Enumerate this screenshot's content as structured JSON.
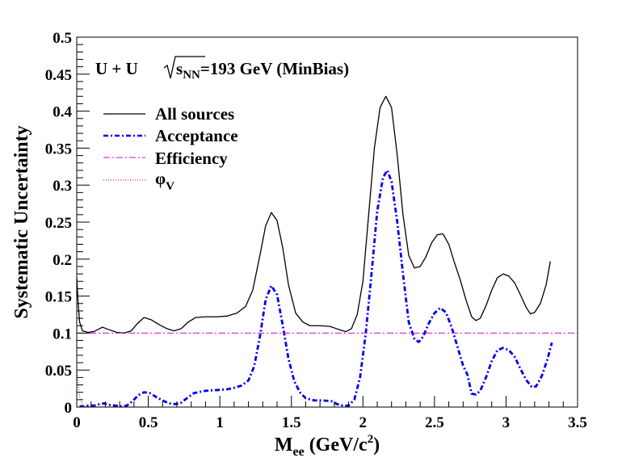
{
  "chart_data": {
    "type": "line",
    "title": "",
    "annotation": {
      "system": "U + U",
      "energy_symbol": "s",
      "energy_subscript": "NN",
      "energy_value": "=193 GeV (MinBias)"
    },
    "xlabel": {
      "main": "M",
      "sub": "ee",
      "unit_pre": " (GeV/c",
      "unit_sup": "2",
      "unit_post": ")"
    },
    "ylabel": "Systematic Uncertainty",
    "xlim": [
      0,
      3.5
    ],
    "ylim": [
      0,
      0.5
    ],
    "x_ticks": [
      {
        "value": 0,
        "label": "0"
      },
      {
        "value": 0.5,
        "label": "0.5"
      },
      {
        "value": 1,
        "label": "1"
      },
      {
        "value": 1.5,
        "label": "1.5"
      },
      {
        "value": 2,
        "label": "2"
      },
      {
        "value": 2.5,
        "label": "2.5"
      },
      {
        "value": 3,
        "label": "3"
      },
      {
        "value": 3.5,
        "label": "3.5"
      }
    ],
    "y_ticks": [
      {
        "value": 0,
        "label": "0"
      },
      {
        "value": 0.05,
        "label": "0.05"
      },
      {
        "value": 0.1,
        "label": "0.1"
      },
      {
        "value": 0.15,
        "label": "0.15"
      },
      {
        "value": 0.2,
        "label": "0.2"
      },
      {
        "value": 0.25,
        "label": "0.25"
      },
      {
        "value": 0.3,
        "label": "0.3"
      },
      {
        "value": 0.35,
        "label": "0.35"
      },
      {
        "value": 0.4,
        "label": "0.4"
      },
      {
        "value": 0.45,
        "label": "0.45"
      },
      {
        "value": 0.5,
        "label": "0.5"
      }
    ],
    "grid": false,
    "legend_position": "top-left",
    "series": [
      {
        "name": "All sources",
        "color": "#000000",
        "style": "solid",
        "points": [
          [
            0.0,
            0.175
          ],
          [
            0.01,
            0.14
          ],
          [
            0.02,
            0.115
          ],
          [
            0.04,
            0.103
          ],
          [
            0.08,
            0.101
          ],
          [
            0.12,
            0.102
          ],
          [
            0.15,
            0.105
          ],
          [
            0.18,
            0.108
          ],
          [
            0.22,
            0.105
          ],
          [
            0.28,
            0.101
          ],
          [
            0.33,
            0.1
          ],
          [
            0.38,
            0.103
          ],
          [
            0.42,
            0.112
          ],
          [
            0.47,
            0.121
          ],
          [
            0.52,
            0.118
          ],
          [
            0.58,
            0.111
          ],
          [
            0.63,
            0.106
          ],
          [
            0.68,
            0.103
          ],
          [
            0.73,
            0.106
          ],
          [
            0.78,
            0.115
          ],
          [
            0.83,
            0.121
          ],
          [
            0.9,
            0.122
          ],
          [
            0.98,
            0.122
          ],
          [
            1.05,
            0.123
          ],
          [
            1.12,
            0.127
          ],
          [
            1.18,
            0.136
          ],
          [
            1.23,
            0.158
          ],
          [
            1.28,
            0.205
          ],
          [
            1.32,
            0.245
          ],
          [
            1.36,
            0.263
          ],
          [
            1.4,
            0.252
          ],
          [
            1.44,
            0.215
          ],
          [
            1.48,
            0.165
          ],
          [
            1.53,
            0.127
          ],
          [
            1.58,
            0.115
          ],
          [
            1.63,
            0.11
          ],
          [
            1.7,
            0.11
          ],
          [
            1.77,
            0.109
          ],
          [
            1.83,
            0.105
          ],
          [
            1.88,
            0.102
          ],
          [
            1.92,
            0.106
          ],
          [
            1.96,
            0.125
          ],
          [
            2.0,
            0.17
          ],
          [
            2.04,
            0.26
          ],
          [
            2.08,
            0.35
          ],
          [
            2.12,
            0.405
          ],
          [
            2.16,
            0.42
          ],
          [
            2.2,
            0.405
          ],
          [
            2.24,
            0.34
          ],
          [
            2.28,
            0.26
          ],
          [
            2.32,
            0.205
          ],
          [
            2.36,
            0.188
          ],
          [
            2.4,
            0.19
          ],
          [
            2.44,
            0.203
          ],
          [
            2.48,
            0.222
          ],
          [
            2.52,
            0.233
          ],
          [
            2.56,
            0.234
          ],
          [
            2.6,
            0.22
          ],
          [
            2.64,
            0.195
          ],
          [
            2.68,
            0.172
          ],
          [
            2.72,
            0.145
          ],
          [
            2.76,
            0.122
          ],
          [
            2.79,
            0.117
          ],
          [
            2.82,
            0.12
          ],
          [
            2.86,
            0.137
          ],
          [
            2.9,
            0.158
          ],
          [
            2.94,
            0.175
          ],
          [
            2.98,
            0.18
          ],
          [
            3.02,
            0.177
          ],
          [
            3.06,
            0.168
          ],
          [
            3.1,
            0.152
          ],
          [
            3.14,
            0.135
          ],
          [
            3.17,
            0.126
          ],
          [
            3.2,
            0.128
          ],
          [
            3.24,
            0.14
          ],
          [
            3.28,
            0.165
          ],
          [
            3.31,
            0.197
          ]
        ]
      },
      {
        "name": "Acceptance",
        "color": "#0000ee",
        "style": "dashed",
        "points": [
          [
            0.02,
            0.001
          ],
          [
            0.05,
            0.001
          ],
          [
            0.08,
            0.002
          ],
          [
            0.12,
            0.002
          ],
          [
            0.16,
            0.004
          ],
          [
            0.19,
            0.005
          ],
          [
            0.23,
            0.003
          ],
          [
            0.27,
            0.002
          ],
          [
            0.31,
            0.001
          ],
          [
            0.35,
            0.002
          ],
          [
            0.39,
            0.008
          ],
          [
            0.43,
            0.016
          ],
          [
            0.47,
            0.02
          ],
          [
            0.51,
            0.019
          ],
          [
            0.56,
            0.013
          ],
          [
            0.61,
            0.008
          ],
          [
            0.65,
            0.005
          ],
          [
            0.69,
            0.004
          ],
          [
            0.73,
            0.006
          ],
          [
            0.77,
            0.012
          ],
          [
            0.82,
            0.019
          ],
          [
            0.9,
            0.022
          ],
          [
            0.98,
            0.023
          ],
          [
            1.05,
            0.024
          ],
          [
            1.1,
            0.026
          ],
          [
            1.15,
            0.029
          ],
          [
            1.2,
            0.036
          ],
          [
            1.24,
            0.055
          ],
          [
            1.28,
            0.095
          ],
          [
            1.32,
            0.145
          ],
          [
            1.36,
            0.164
          ],
          [
            1.4,
            0.152
          ],
          [
            1.44,
            0.11
          ],
          [
            1.48,
            0.065
          ],
          [
            1.52,
            0.035
          ],
          [
            1.56,
            0.02
          ],
          [
            1.6,
            0.012
          ],
          [
            1.66,
            0.009
          ],
          [
            1.72,
            0.009
          ],
          [
            1.78,
            0.008
          ],
          [
            1.82,
            0.004
          ],
          [
            1.86,
            0.002
          ],
          [
            1.9,
            0.002
          ],
          [
            1.94,
            0.01
          ],
          [
            1.98,
            0.04
          ],
          [
            2.02,
            0.1
          ],
          [
            2.06,
            0.18
          ],
          [
            2.1,
            0.265
          ],
          [
            2.14,
            0.31
          ],
          [
            2.17,
            0.32
          ],
          [
            2.2,
            0.305
          ],
          [
            2.24,
            0.25
          ],
          [
            2.28,
            0.18
          ],
          [
            2.32,
            0.115
          ],
          [
            2.36,
            0.092
          ],
          [
            2.39,
            0.088
          ],
          [
            2.42,
            0.095
          ],
          [
            2.46,
            0.113
          ],
          [
            2.5,
            0.127
          ],
          [
            2.54,
            0.134
          ],
          [
            2.58,
            0.128
          ],
          [
            2.62,
            0.108
          ],
          [
            2.66,
            0.082
          ],
          [
            2.7,
            0.056
          ],
          [
            2.73,
            0.044
          ],
          [
            2.76,
            0.018
          ],
          [
            2.79,
            0.017
          ],
          [
            2.82,
            0.022
          ],
          [
            2.86,
            0.04
          ],
          [
            2.9,
            0.062
          ],
          [
            2.94,
            0.077
          ],
          [
            2.98,
            0.08
          ],
          [
            3.02,
            0.077
          ],
          [
            3.06,
            0.068
          ],
          [
            3.1,
            0.052
          ],
          [
            3.14,
            0.037
          ],
          [
            3.18,
            0.027
          ],
          [
            3.21,
            0.028
          ],
          [
            3.25,
            0.042
          ],
          [
            3.29,
            0.065
          ],
          [
            3.32,
            0.087
          ]
        ]
      },
      {
        "name": "Efficiency",
        "color": "#dd00dd",
        "style": "dashdot",
        "points": [
          [
            0.0,
            0.1
          ],
          [
            3.5,
            0.1
          ]
        ]
      },
      {
        "name": "φ",
        "name_subscript": "V",
        "color": "#cc0000",
        "style": "dotted",
        "points": [
          [
            0.0,
            0.05
          ],
          [
            0.01,
            0.03
          ],
          [
            0.02,
            0.015
          ],
          [
            0.03,
            0.008
          ],
          [
            0.04,
            0.004
          ],
          [
            0.05,
            0.002
          ],
          [
            0.07,
            0.001
          ],
          [
            0.1,
            0.0005
          ],
          [
            0.5,
            0.0
          ],
          [
            1.0,
            0.0
          ],
          [
            1.5,
            0.0
          ],
          [
            2.0,
            0.0
          ],
          [
            2.5,
            0.0
          ],
          [
            3.0,
            0.0
          ],
          [
            3.3,
            0.0
          ]
        ]
      }
    ]
  }
}
